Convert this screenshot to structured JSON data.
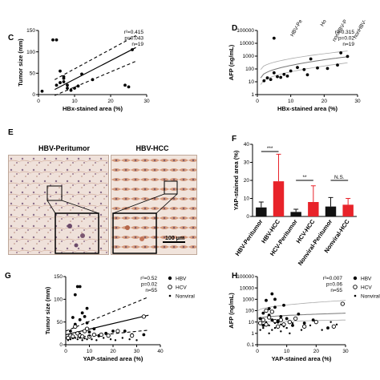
{
  "panels": {
    "C": "C",
    "D": "D",
    "E": "E",
    "F": "F",
    "G": "G",
    "H": "H"
  },
  "chart_data": [
    {
      "id": "C",
      "type": "scatter",
      "xlabel": "HBx-stained area (%)",
      "ylabel": "Tumor size (mm)",
      "xlim": [
        0,
        30
      ],
      "ylim": [
        0,
        150
      ],
      "xticks": [
        "0",
        "10",
        "20",
        "30"
      ],
      "yticks": [
        "0",
        "50",
        "100",
        "150"
      ],
      "stats": [
        "r²=0.415",
        "p=0.043",
        "n=19"
      ],
      "points": [
        [
          1,
          8
        ],
        [
          4,
          128
        ],
        [
          5,
          128
        ],
        [
          5,
          22
        ],
        [
          6,
          28
        ],
        [
          6,
          55
        ],
        [
          7,
          38
        ],
        [
          7,
          42
        ],
        [
          7,
          30
        ],
        [
          8,
          22
        ],
        [
          8,
          15
        ],
        [
          9,
          10
        ],
        [
          10,
          15
        ],
        [
          11,
          20
        ],
        [
          12,
          48
        ],
        [
          15,
          35
        ],
        [
          24,
          22
        ],
        [
          25,
          18
        ],
        [
          26,
          105
        ]
      ],
      "fit": [
        [
          4.5,
          12
        ],
        [
          27,
          110
        ]
      ],
      "ci_upper": [
        [
          4.5,
          35
        ],
        [
          27,
          138
        ]
      ],
      "ci_lower": [
        [
          4.5,
          -2
        ],
        [
          27,
          78
        ]
      ]
    },
    {
      "id": "D",
      "type": "scatter",
      "xlabel": "HBx-stained area (%)",
      "ylabel": "AFP (ng/mL)",
      "yscale": "log",
      "xlim": [
        0,
        30
      ],
      "ylim": [
        1,
        100000
      ],
      "xticks": [
        "0",
        "10",
        "20",
        "30"
      ],
      "yticks": [
        "1",
        "10",
        "100",
        "1000",
        "10000",
        "100000"
      ],
      "stats": [
        "r²=0.315",
        "p=0.02",
        "n=19"
      ],
      "points": [
        [
          2,
          12
        ],
        [
          3,
          20
        ],
        [
          4,
          15
        ],
        [
          5,
          50
        ],
        [
          5,
          25000
        ],
        [
          6,
          25
        ],
        [
          7,
          22
        ],
        [
          8,
          38
        ],
        [
          9,
          28
        ],
        [
          10,
          70
        ],
        [
          12,
          130
        ],
        [
          14,
          90
        ],
        [
          16,
          600
        ],
        [
          18,
          120
        ],
        [
          21,
          110
        ],
        [
          25,
          1800
        ],
        [
          24,
          200
        ],
        [
          27,
          950
        ],
        [
          15,
          35
        ]
      ],
      "fit_log": [
        [
          1,
          20
        ],
        [
          27,
          900
        ]
      ],
      "ci_upper_log": [
        [
          1,
          90
        ],
        [
          27,
          2500
        ]
      ],
      "ci_lower_log": [
        [
          1,
          6
        ],
        [
          27,
          300
        ]
      ]
    },
    {
      "id": "F",
      "type": "bar",
      "ylabel": "YAP-stained area (%)",
      "ylim": [
        0,
        40
      ],
      "yticks": [
        "0",
        "10",
        "20",
        "30",
        "40"
      ],
      "categories": [
        "HBV-Peritumor",
        "HBV-HCC",
        "HCV-Peritumor",
        "HCV-HCC",
        "Nonviral-Peritumor",
        "Nonviral-HCC"
      ],
      "values": [
        5,
        19.5,
        2.5,
        8,
        5.5,
        6.5
      ],
      "errors": [
        3,
        15,
        1.5,
        9,
        5,
        3.5
      ],
      "bar_colors": [
        "#111111",
        "#e8232a",
        "#111111",
        "#e8232a",
        "#111111",
        "#e8232a"
      ],
      "significance": [
        {
          "label": "***",
          "from": 0,
          "to": 1
        },
        {
          "label": "**",
          "from": 2,
          "to": 3
        },
        {
          "label": "N.S.",
          "from": 4,
          "to": 5
        }
      ]
    },
    {
      "id": "G",
      "type": "scatter",
      "xlabel": "YAP-stained area (%)",
      "ylabel": "Tumor size (mm)",
      "xlim": [
        0,
        40
      ],
      "ylim": [
        0,
        150
      ],
      "xticks": [
        "0",
        "10",
        "20",
        "30",
        "40"
      ],
      "yticks": [
        "0",
        "50",
        "100",
        "150"
      ],
      "stats": [
        "r²=0.52",
        "p=0.02",
        "n=55"
      ],
      "legend": [
        "HBV",
        "HCV",
        "Nonviral"
      ],
      "series": [
        {
          "name": "HBV",
          "marker": "filled",
          "points": [
            [
              2,
              30
            ],
            [
              3,
              60
            ],
            [
              4,
              110
            ],
            [
              5,
              128
            ],
            [
              6,
              128
            ],
            [
              7,
              70
            ],
            [
              9,
              80
            ],
            [
              9,
              48
            ],
            [
              10,
              28
            ],
            [
              12,
              35
            ],
            [
              14,
              20
            ],
            [
              17,
              25
            ],
            [
              20,
              30
            ],
            [
              25,
              30
            ],
            [
              28,
              22
            ],
            [
              33,
              22
            ],
            [
              4,
              45
            ],
            [
              6,
              55
            ],
            [
              8,
              62
            ]
          ]
        },
        {
          "name": "HCV",
          "marker": "open",
          "points": [
            [
              1,
              15
            ],
            [
              2,
              20
            ],
            [
              3,
              18
            ],
            [
              5,
              25
            ],
            [
              6,
              20
            ],
            [
              7,
              18
            ],
            [
              8,
              30
            ],
            [
              10,
              18
            ],
            [
              12,
              22
            ],
            [
              15,
              22
            ],
            [
              18,
              20
            ],
            [
              22,
              30
            ],
            [
              28,
              20
            ],
            [
              33,
              62
            ],
            [
              4,
              40
            ],
            [
              9,
              35
            ]
          ]
        },
        {
          "name": "Nonviral",
          "marker": "small",
          "points": [
            [
              1,
              10
            ],
            [
              2,
              12
            ],
            [
              3,
              14
            ],
            [
              4,
              15
            ],
            [
              5,
              12
            ],
            [
              6,
              15
            ],
            [
              7,
              10
            ],
            [
              8,
              14
            ],
            [
              9,
              12
            ],
            [
              11,
              12
            ],
            [
              13,
              10
            ],
            [
              16,
              15
            ],
            [
              19,
              12
            ],
            [
              21,
              10
            ],
            [
              24,
              15
            ],
            [
              27,
              12
            ],
            [
              30,
              10
            ],
            [
              6,
              25
            ],
            [
              10,
              20
            ],
            [
              14,
              18
            ]
          ]
        }
      ],
      "fit": [
        [
          0,
          22
        ],
        [
          35,
          65
        ]
      ],
      "ci_upper": [
        [
          0,
          30
        ],
        [
          35,
          105
        ]
      ],
      "ci_lower": [
        [
          0,
          14
        ],
        [
          35,
          32
        ]
      ]
    },
    {
      "id": "H",
      "type": "scatter",
      "xlabel": "YAP-stained area (%)",
      "ylabel": "AFP (ng/mL)",
      "yscale": "log",
      "xlim": [
        0,
        30
      ],
      "ylim": [
        0.1,
        100000
      ],
      "xticks": [
        "0",
        "10",
        "20",
        "30"
      ],
      "yticks": [
        "0.1",
        "1",
        "10",
        "100",
        "1000",
        "10000",
        "100000"
      ],
      "stats": [
        "r²=0.007",
        "p=0.06",
        "n=55"
      ],
      "legend": [
        "HBV",
        "HCV",
        "Nonviral"
      ],
      "series": [
        {
          "name": "HBV",
          "marker": "filled",
          "points": [
            [
              1,
              20
            ],
            [
              2,
              60
            ],
            [
              3,
              800
            ],
            [
              4,
              40
            ],
            [
              5,
              15
            ],
            [
              5,
              3000
            ],
            [
              6,
              200
            ],
            [
              7,
              10
            ],
            [
              8,
              30
            ],
            [
              9,
              300
            ],
            [
              10,
              20
            ],
            [
              12,
              5
            ],
            [
              14,
              50
            ],
            [
              16,
              8
            ],
            [
              19,
              15
            ],
            [
              24,
              3
            ],
            [
              2,
              5
            ],
            [
              4,
              150
            ],
            [
              6,
              1000
            ]
          ]
        },
        {
          "name": "HCV",
          "marker": "open",
          "points": [
            [
              1,
              8
            ],
            [
              2,
              15
            ],
            [
              3,
              6
            ],
            [
              4,
              25
            ],
            [
              5,
              80
            ],
            [
              6,
              12
            ],
            [
              7,
              4
            ],
            [
              8,
              15
            ],
            [
              9,
              6
            ],
            [
              11,
              10
            ],
            [
              13,
              20
            ],
            [
              16,
              4
            ],
            [
              20,
              10
            ],
            [
              26,
              4
            ],
            [
              29,
              400
            ],
            [
              3,
              100
            ]
          ]
        },
        {
          "name": "Nonviral",
          "marker": "small",
          "points": [
            [
              1,
              2
            ],
            [
              2,
              3
            ],
            [
              3,
              10
            ],
            [
              4,
              5
            ],
            [
              5,
              2
            ],
            [
              6,
              3
            ],
            [
              7,
              15
            ],
            [
              8,
              6
            ],
            [
              9,
              4
            ],
            [
              10,
              3
            ],
            [
              12,
              8
            ],
            [
              15,
              2
            ],
            [
              18,
              5
            ],
            [
              22,
              2
            ],
            [
              27,
              6
            ],
            [
              4,
              1
            ],
            [
              6,
              8
            ],
            [
              8,
              1.5
            ],
            [
              11,
              1
            ],
            [
              25,
              10
            ]
          ]
        }
      ],
      "fit_log": [
        [
          0,
          20
        ],
        [
          30,
          60
        ]
      ],
      "ci_upper_log": [
        [
          0,
          90
        ],
        [
          30,
          800
        ]
      ],
      "ci_lower_log": [
        [
          0,
          8
        ],
        [
          30,
          15
        ]
      ]
    }
  ],
  "micrographs": {
    "left_title": "HBV-Peritumor",
    "right_title": "HBV-HCC",
    "scale_bar": "100 μm"
  },
  "top_labels": [
    "HBV-Pe",
    "Ho",
    "nonHBV-P",
    "nonHBV-"
  ],
  "colors": {
    "accent_red": "#e8232a",
    "tissue_light": "#efe1da",
    "tissue_stain": "#c9876a"
  }
}
